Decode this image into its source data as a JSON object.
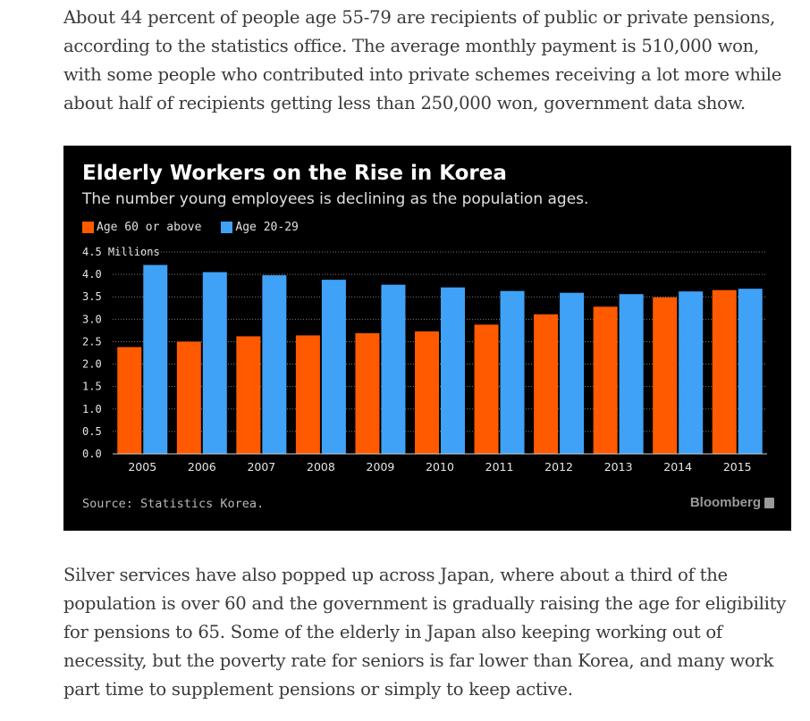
{
  "article": {
    "para1": "About 44 percent of people age 55-79 are recipients of public or private pensions, according to the statistics office. The average monthly payment is 510,000 won, with some people who contributed into private schemes receiving a lot more while about half of recipients getting less than 250,000 won, government data show.",
    "para2": "Silver services have also popped up across Japan, where about a third of the population is over 60 and the government is gradually raising the age for eligibility for pensions to 65. Some of the elderly in Japan also keeping working out of necessity, but the poverty rate for seniors is far lower than Korea, and many work part time to supplement pensions or simply to keep active."
  },
  "chart_data": {
    "type": "bar",
    "title": "Elderly Workers on the Rise in Korea",
    "subtitle": "The number young employees is declining as the population ages.",
    "ylabel": "Millions",
    "ylim": [
      0,
      4.5
    ],
    "yticks": [
      "0.0",
      "0.5",
      "1.0",
      "1.5",
      "2.0",
      "2.5",
      "3.0",
      "3.5",
      "4.0",
      "4.5"
    ],
    "categories": [
      "2005",
      "2006",
      "2007",
      "2008",
      "2009",
      "2010",
      "2011",
      "2012",
      "2013",
      "2014",
      "2015"
    ],
    "series": [
      {
        "name": "Age 60 or above",
        "color": "#ff5a00",
        "values": [
          2.38,
          2.5,
          2.62,
          2.64,
          2.69,
          2.73,
          2.88,
          3.11,
          3.28,
          3.49,
          3.65
        ]
      },
      {
        "name": "Age 20-29",
        "color": "#3fa2f7",
        "values": [
          4.21,
          4.05,
          3.98,
          3.88,
          3.77,
          3.71,
          3.63,
          3.59,
          3.56,
          3.62,
          3.68
        ]
      }
    ],
    "grid": true,
    "legend": "top-left",
    "source": "Source: Statistics Korea.",
    "brand": "Bloomberg"
  }
}
